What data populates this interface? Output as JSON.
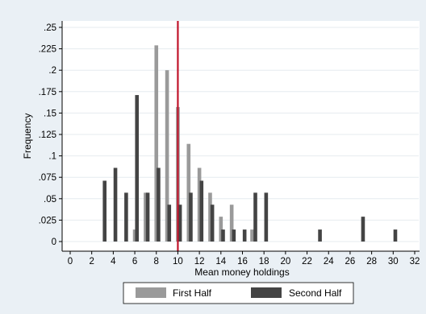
{
  "chart_data": {
    "type": "bar",
    "title": "",
    "xlabel": "Mean money holdings",
    "ylabel": "Frequency",
    "xlim": [
      0,
      32
    ],
    "ylim": [
      0,
      0.25
    ],
    "x_ticks": [
      "0",
      "2",
      "4",
      "6",
      "8",
      "10",
      "12",
      "14",
      "16",
      "18",
      "20",
      "22",
      "24",
      "26",
      "28",
      "30",
      "32"
    ],
    "y_ticks": [
      "0",
      ".025",
      ".05",
      ".075",
      ".1",
      ".125",
      ".15",
      ".175",
      ".2",
      ".225",
      ".25"
    ],
    "reference_line": {
      "x": 10,
      "color": "#c0132a"
    },
    "legend_position": "bottom",
    "series": [
      {
        "name": "First Half",
        "color": "#9a9a9a",
        "x": [
          6,
          7,
          8,
          9,
          10,
          11,
          12,
          13,
          14,
          15,
          16.9
        ],
        "values": [
          0.014,
          0.057,
          0.229,
          0.2,
          0.157,
          0.114,
          0.086,
          0.057,
          0.029,
          0.043,
          0.014
        ]
      },
      {
        "name": "Second Half",
        "color": "#444444",
        "x": [
          3.2,
          4.2,
          5.2,
          6.2,
          7.2,
          8.2,
          9.2,
          10.2,
          11.2,
          12.2,
          13.2,
          14.2,
          15.2,
          16.2,
          17.2,
          18.2,
          23.2,
          27.2,
          30.2
        ],
        "values": [
          0.071,
          0.086,
          0.057,
          0.171,
          0.057,
          0.086,
          0.043,
          0.043,
          0.057,
          0.071,
          0.043,
          0.014,
          0.014,
          0.014,
          0.057,
          0.057,
          0.014,
          0.029,
          0.014
        ]
      }
    ]
  }
}
